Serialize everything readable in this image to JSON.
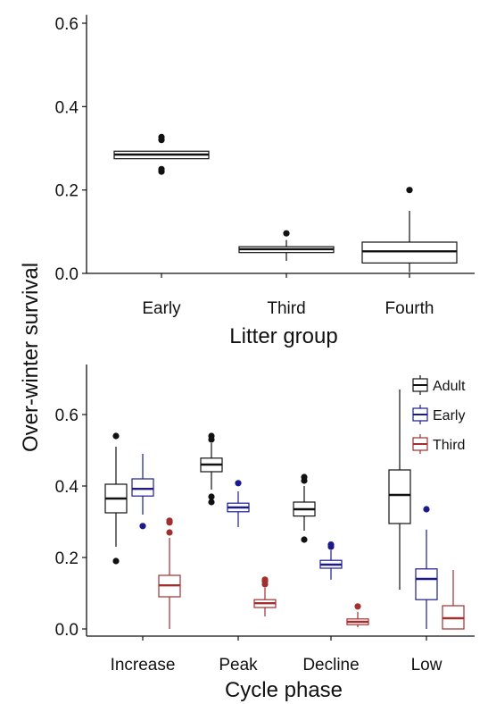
{
  "figure": {
    "ylabel": "Over-winter survival"
  },
  "chart_data": [
    {
      "type": "box",
      "xlabel": "Litter group",
      "ylabel": "Over-winter survival",
      "ylim": [
        0,
        0.62
      ],
      "yticks": [
        "0.0",
        "0.2",
        "0.4",
        "0.6"
      ],
      "grid": false,
      "categories": [
        "Early",
        "Third",
        "Fourth"
      ],
      "series": [
        {
          "color": "#111111",
          "boxes": [
            {
              "category": "Early",
              "min": 0.275,
              "q1": 0.275,
              "median": 0.285,
              "q3": 0.293,
              "max": 0.293,
              "outliers": [
                0.244,
                0.25,
                0.32,
                0.327
              ]
            },
            {
              "category": "Third",
              "min": 0.03,
              "q1": 0.05,
              "median": 0.058,
              "q3": 0.064,
              "max": 0.08,
              "outliers": [
                0.096
              ]
            },
            {
              "category": "Fourth",
              "min": 0.003,
              "q1": 0.025,
              "median": 0.053,
              "q3": 0.075,
              "max": 0.15,
              "outliers": [
                0.2
              ]
            }
          ]
        }
      ]
    },
    {
      "type": "box",
      "xlabel": "Cycle phase",
      "ylim": [
        -0.02,
        0.74
      ],
      "yticks": [
        "0.0",
        "0.2",
        "0.4",
        "0.6"
      ],
      "grid": false,
      "legend_position": "top-right",
      "categories": [
        "Increase",
        "Peak",
        "Decline",
        "Low"
      ],
      "series": [
        {
          "name": "Adult",
          "color": "#111111",
          "boxes": [
            {
              "min": 0.23,
              "q1": 0.325,
              "median": 0.365,
              "q3": 0.405,
              "max": 0.51,
              "outliers": [
                0.19,
                0.54
              ]
            },
            {
              "min": 0.39,
              "q1": 0.44,
              "median": 0.46,
              "q3": 0.478,
              "max": 0.52,
              "outliers": [
                0.355,
                0.37,
                0.53,
                0.54
              ]
            },
            {
              "min": 0.275,
              "q1": 0.316,
              "median": 0.335,
              "q3": 0.355,
              "max": 0.4,
              "outliers": [
                0.25,
                0.415,
                0.425
              ]
            },
            {
              "min": 0.11,
              "q1": 0.295,
              "median": 0.375,
              "q3": 0.445,
              "max": 0.67,
              "outliers": []
            }
          ]
        },
        {
          "name": "Early",
          "color": "#1a1a8c",
          "boxes": [
            {
              "min": 0.32,
              "q1": 0.372,
              "median": 0.392,
              "q3": 0.42,
              "max": 0.49,
              "outliers": [
                0.288
              ]
            },
            {
              "min": 0.285,
              "q1": 0.328,
              "median": 0.34,
              "q3": 0.352,
              "max": 0.385,
              "outliers": [
                0.408
              ]
            },
            {
              "min": 0.138,
              "q1": 0.17,
              "median": 0.18,
              "q3": 0.192,
              "max": 0.22,
              "outliers": [
                0.23,
                0.236
              ]
            },
            {
              "min": 0.0,
              "q1": 0.082,
              "median": 0.14,
              "q3": 0.168,
              "max": 0.278,
              "outliers": [
                0.335
              ]
            }
          ]
        },
        {
          "name": "Third",
          "color": "#a03030",
          "boxes": [
            {
              "min": 0.0,
              "q1": 0.09,
              "median": 0.122,
              "q3": 0.15,
              "max": 0.255,
              "outliers": [
                0.27,
                0.298,
                0.303
              ]
            },
            {
              "min": 0.035,
              "q1": 0.06,
              "median": 0.072,
              "q3": 0.082,
              "max": 0.115,
              "outliers": [
                0.125,
                0.133,
                0.138
              ]
            },
            {
              "min": 0.005,
              "q1": 0.012,
              "median": 0.02,
              "q3": 0.028,
              "max": 0.048,
              "outliers": [
                0.063
              ]
            },
            {
              "min": 0.0,
              "q1": 0.0,
              "median": 0.03,
              "q3": 0.065,
              "max": 0.165,
              "outliers": []
            }
          ]
        }
      ]
    }
  ]
}
